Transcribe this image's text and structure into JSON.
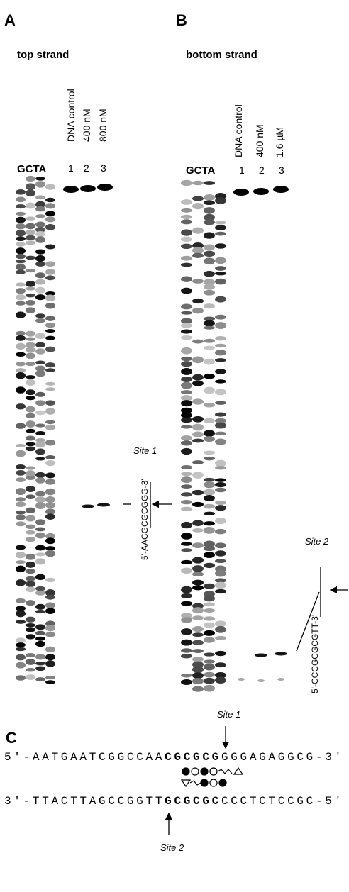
{
  "panels": [
    {
      "label": "A",
      "title": "top strand",
      "ladder": "GCTA",
      "lanes": [
        {
          "name": "DNA control",
          "number": "1"
        },
        {
          "name": "400 nM",
          "number": "2"
        },
        {
          "name": "800 nM",
          "number": "3"
        }
      ],
      "site": {
        "label": "Site 1",
        "sequence": "5'-AACGCGCGGG-3'"
      }
    },
    {
      "label": "B",
      "title": "bottom strand",
      "ladder": "GCTA",
      "lanes": [
        {
          "name": "DNA control",
          "number": "1"
        },
        {
          "name": "400 nM",
          "number": "2"
        },
        {
          "name": "1.6 µM",
          "number": "3"
        }
      ],
      "site": {
        "label": "Site 2",
        "sequence": "5'-CCCGCGCGTT-3'"
      }
    }
  ],
  "sequence_panel": {
    "label": "C",
    "site_top": "Site 1",
    "site_bottom": "Site 2",
    "top": {
      "prefix": "5'-AATGAATCGGCCAA",
      "bold": "CGCGCG",
      "suffix": "GGGAGAGGCG-3'"
    },
    "bottom": {
      "prefix": "3'-TTACTTAGCCGGTT",
      "bold": "GCGCGC",
      "suffix": "CCCTCTCCGC-5'"
    }
  }
}
